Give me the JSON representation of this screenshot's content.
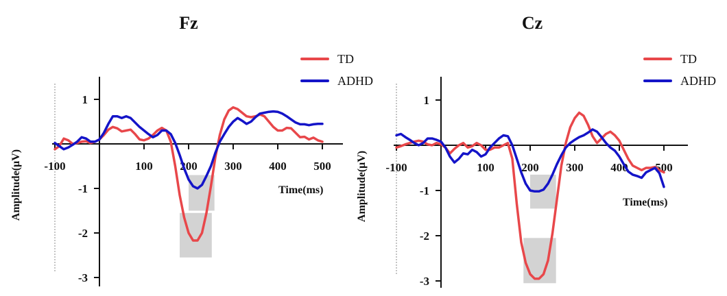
{
  "colors": {
    "TD": "#e8474a",
    "ADHD": "#1414c8",
    "shade": "#d3d3d3"
  },
  "chart_data": [
    {
      "type": "line",
      "title": "Fz",
      "xlabel": "Time(ms)",
      "ylabel": "Amplitude(μV)",
      "xlim": [
        -100,
        500
      ],
      "ylim": [
        -3,
        1
      ],
      "x_ticks": [
        -100,
        100,
        200,
        300,
        400,
        500
      ],
      "x_tick_labels": [
        "-100",
        "100",
        "200",
        "300",
        "400",
        "500"
      ],
      "y_ticks": [
        1,
        -1,
        -2,
        -3
      ],
      "y_tick_labels": [
        "1",
        "-1",
        "-2",
        "-3"
      ],
      "legend": [
        "TD",
        "ADHD"
      ],
      "legend_position": "top-right",
      "shaded_windows": [
        {
          "series": "ADHD",
          "x": [
            200,
            258
          ],
          "y": [
            -1.5,
            -0.7
          ]
        },
        {
          "series": "TD",
          "x": [
            180,
            252
          ],
          "y": [
            -2.55,
            -1.55
          ]
        }
      ],
      "series": [
        {
          "name": "TD",
          "x": [
            -100,
            -90,
            -80,
            -70,
            -60,
            -50,
            -40,
            -30,
            -20,
            -10,
            0,
            10,
            20,
            30,
            40,
            50,
            60,
            70,
            80,
            90,
            100,
            110,
            120,
            130,
            140,
            150,
            160,
            170,
            180,
            190,
            200,
            210,
            220,
            230,
            240,
            250,
            260,
            270,
            280,
            290,
            300,
            310,
            320,
            330,
            340,
            350,
            360,
            370,
            380,
            390,
            400,
            410,
            420,
            430,
            440,
            450,
            460,
            470,
            480,
            490,
            500
          ],
          "values": [
            -0.12,
            -0.05,
            0.12,
            0.08,
            0.0,
            0.02,
            0.05,
            0.06,
            0.02,
            0.05,
            0.1,
            0.2,
            0.32,
            0.38,
            0.35,
            0.28,
            0.3,
            0.32,
            0.22,
            0.1,
            0.08,
            0.12,
            0.2,
            0.3,
            0.36,
            0.3,
            0.05,
            -0.5,
            -1.15,
            -1.65,
            -2.0,
            -2.17,
            -2.17,
            -2.0,
            -1.55,
            -0.95,
            -0.3,
            0.2,
            0.55,
            0.75,
            0.82,
            0.78,
            0.7,
            0.62,
            0.6,
            0.62,
            0.66,
            0.62,
            0.5,
            0.38,
            0.3,
            0.3,
            0.36,
            0.35,
            0.25,
            0.15,
            0.16,
            0.1,
            0.14,
            0.08,
            0.05
          ]
        },
        {
          "name": "ADHD",
          "x": [
            -100,
            -90,
            -80,
            -70,
            -60,
            -50,
            -40,
            -30,
            -20,
            -10,
            0,
            10,
            20,
            30,
            40,
            50,
            60,
            70,
            80,
            90,
            100,
            110,
            120,
            130,
            140,
            150,
            160,
            170,
            180,
            190,
            200,
            210,
            220,
            230,
            240,
            250,
            260,
            270,
            280,
            290,
            300,
            310,
            320,
            330,
            340,
            350,
            360,
            370,
            380,
            390,
            400,
            410,
            420,
            430,
            440,
            450,
            460,
            470,
            480,
            490,
            500
          ],
          "values": [
            0.02,
            -0.05,
            -0.12,
            -0.08,
            -0.02,
            0.05,
            0.15,
            0.12,
            0.05,
            0.05,
            0.1,
            0.25,
            0.45,
            0.62,
            0.62,
            0.58,
            0.62,
            0.58,
            0.48,
            0.38,
            0.3,
            0.22,
            0.15,
            0.2,
            0.3,
            0.3,
            0.22,
            0.02,
            -0.25,
            -0.55,
            -0.8,
            -0.95,
            -1.0,
            -0.92,
            -0.72,
            -0.5,
            -0.2,
            0.05,
            0.22,
            0.38,
            0.5,
            0.58,
            0.52,
            0.45,
            0.5,
            0.6,
            0.68,
            0.7,
            0.72,
            0.73,
            0.72,
            0.68,
            0.62,
            0.55,
            0.48,
            0.44,
            0.44,
            0.42,
            0.44,
            0.45,
            0.45
          ]
        }
      ]
    },
    {
      "type": "line",
      "title": "Cz",
      "xlabel": "Time(ms)",
      "ylabel": "Amplitude(μV)",
      "xlim": [
        -100,
        500
      ],
      "ylim": [
        -3,
        1
      ],
      "x_ticks": [
        -100,
        100,
        200,
        300,
        400,
        500
      ],
      "x_tick_labels": [
        "-100",
        "100",
        "200",
        "300",
        "400",
        "500"
      ],
      "y_ticks": [
        1,
        -1,
        -2,
        -3
      ],
      "y_tick_labels": [
        "1",
        "-1",
        "-2",
        "-3"
      ],
      "legend": [
        "TD",
        "ADHD"
      ],
      "legend_position": "top-right",
      "shaded_windows": [
        {
          "series": "ADHD",
          "x": [
            200,
            258
          ],
          "y": [
            -1.4,
            -0.65
          ]
        },
        {
          "series": "TD",
          "x": [
            185,
            258
          ],
          "y": [
            -3.05,
            -2.05
          ]
        }
      ],
      "series": [
        {
          "name": "TD",
          "x": [
            -100,
            -90,
            -80,
            -70,
            -60,
            -50,
            -40,
            -30,
            -20,
            -10,
            0,
            10,
            20,
            30,
            40,
            50,
            60,
            70,
            80,
            90,
            100,
            110,
            120,
            130,
            140,
            150,
            160,
            170,
            180,
            190,
            200,
            210,
            220,
            230,
            240,
            250,
            260,
            270,
            280,
            290,
            300,
            310,
            320,
            330,
            340,
            350,
            360,
            370,
            380,
            390,
            400,
            410,
            420,
            430,
            440,
            450,
            460,
            470,
            480,
            490,
            500
          ],
          "values": [
            -0.05,
            -0.02,
            0.02,
            0.05,
            0.08,
            0.1,
            0.08,
            0.02,
            0.0,
            0.05,
            0.02,
            -0.05,
            -0.18,
            -0.08,
            0.0,
            0.05,
            -0.05,
            -0.02,
            0.05,
            0.0,
            -0.1,
            -0.1,
            -0.05,
            -0.05,
            0.0,
            0.05,
            -0.3,
            -1.3,
            -2.15,
            -2.6,
            -2.85,
            -2.95,
            -2.95,
            -2.85,
            -2.55,
            -1.95,
            -1.2,
            -0.45,
            0.05,
            0.4,
            0.6,
            0.72,
            0.65,
            0.45,
            0.2,
            0.05,
            0.15,
            0.25,
            0.3,
            0.22,
            0.1,
            -0.1,
            -0.3,
            -0.45,
            -0.5,
            -0.55,
            -0.5,
            -0.5,
            -0.48,
            -0.55,
            -0.6
          ]
        },
        {
          "name": "ADHD",
          "x": [
            -100,
            -90,
            -80,
            -70,
            -60,
            -50,
            -40,
            -30,
            -20,
            -10,
            0,
            10,
            20,
            30,
            40,
            50,
            60,
            70,
            80,
            90,
            100,
            110,
            120,
            130,
            140,
            150,
            160,
            170,
            180,
            190,
            200,
            210,
            220,
            230,
            240,
            250,
            260,
            270,
            280,
            290,
            300,
            310,
            320,
            330,
            340,
            350,
            360,
            370,
            380,
            390,
            400,
            410,
            420,
            430,
            440,
            450,
            460,
            470,
            480,
            490,
            500
          ],
          "values": [
            0.22,
            0.25,
            0.18,
            0.12,
            0.05,
            0.0,
            0.05,
            0.15,
            0.15,
            0.12,
            0.08,
            -0.05,
            -0.25,
            -0.38,
            -0.3,
            -0.18,
            -0.2,
            -0.1,
            -0.15,
            -0.25,
            -0.2,
            -0.05,
            0.05,
            0.15,
            0.22,
            0.2,
            0.0,
            -0.3,
            -0.6,
            -0.85,
            -1.0,
            -1.02,
            -1.02,
            -0.98,
            -0.85,
            -0.65,
            -0.42,
            -0.22,
            -0.05,
            0.05,
            0.12,
            0.18,
            0.22,
            0.28,
            0.35,
            0.3,
            0.18,
            0.05,
            -0.05,
            -0.12,
            -0.25,
            -0.42,
            -0.58,
            -0.65,
            -0.68,
            -0.72,
            -0.6,
            -0.55,
            -0.5,
            -0.62,
            -0.92
          ]
        }
      ]
    }
  ]
}
